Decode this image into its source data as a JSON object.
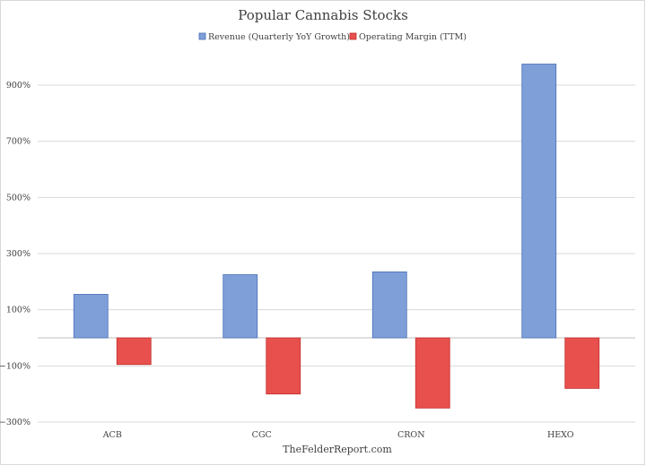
{
  "chart_data": {
    "type": "bar",
    "title": "Popular Cannabis Stocks",
    "categories": [
      "ACB",
      "CGC",
      "CRON",
      "HEXO"
    ],
    "series": [
      {
        "name": "Revenue (Quarterly YoY Growth)",
        "values": [
          155,
          225,
          235,
          975
        ],
        "color": "#7f9fd9",
        "stroke": "#4a6fb4"
      },
      {
        "name": "Operating Margin (TTM)",
        "values": [
          -95,
          -200,
          -250,
          -180
        ],
        "color": "#e8504d",
        "stroke": "#c0302d"
      }
    ],
    "ylim": [
      -300,
      1050
    ],
    "y_ticks": [
      -300,
      -100,
      100,
      300,
      500,
      700,
      900
    ],
    "y_tick_labels": [
      "−300%",
      "−100%",
      "100%",
      "300%",
      "500%",
      "700%",
      "900%"
    ],
    "xlabel": "",
    "ylabel": "",
    "grid": true,
    "legend_position": "top"
  },
  "source_label": "TheFelderReport.com"
}
